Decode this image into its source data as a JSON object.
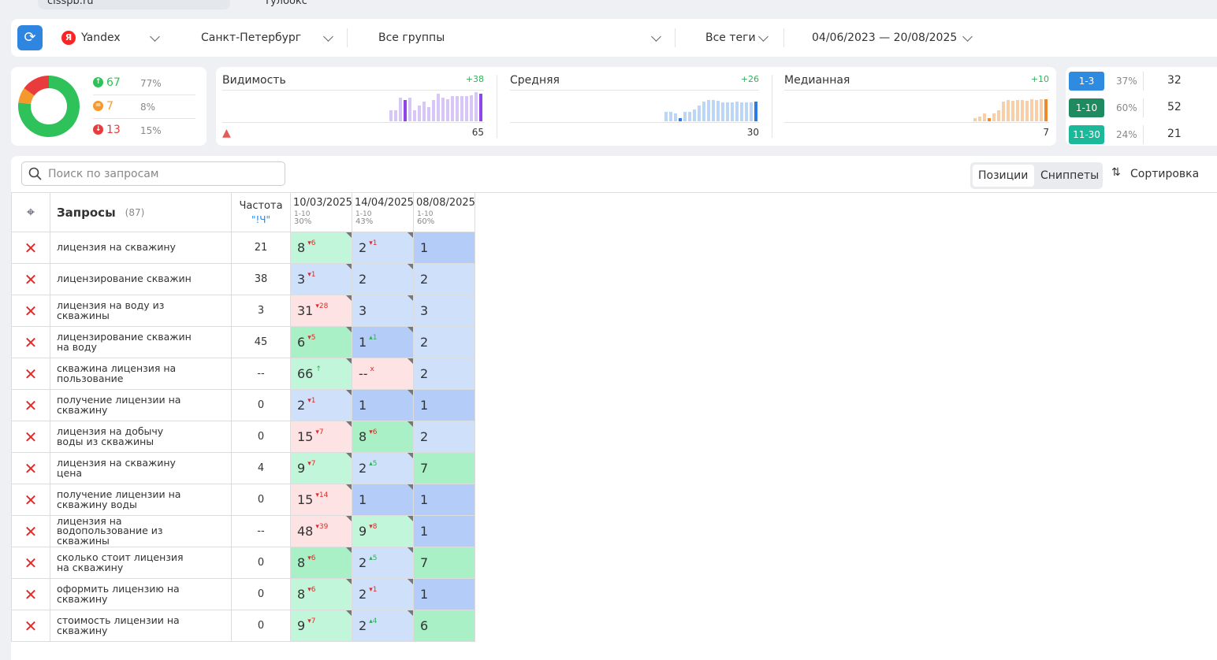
{
  "topbar": {
    "site": "cisspb.ru",
    "toolbox": "Тулбокс"
  },
  "filters": {
    "engine": "Yandex",
    "region": "Санкт-Петербург",
    "groups": "Все группы",
    "tags": "Все теги",
    "dates": "04/06/2023 — 20/08/2025"
  },
  "summary": {
    "type": "pie",
    "items": [
      {
        "count": 67,
        "share": "77%",
        "color": "#2fc15a"
      },
      {
        "count": 7,
        "share": "8%",
        "color": "#f49a2c"
      },
      {
        "count": 13,
        "share": "15%",
        "color": "#e93b3b"
      }
    ]
  },
  "cards": [
    {
      "title": "Видимость",
      "delta": "+38",
      "value": 65,
      "color": "#d8c6f7",
      "dark": "#8f45e8",
      "bars": [
        14,
        14,
        30,
        27,
        30,
        14,
        20,
        25,
        18,
        27,
        35,
        30,
        28,
        32,
        32,
        32,
        32,
        33,
        37,
        35
      ]
    },
    {
      "title": "Средняя",
      "delta": "+26",
      "value": 30,
      "color": "#bcd6f7",
      "dark": "#2a7be6",
      "bars": [
        12,
        12,
        10,
        4,
        12,
        12,
        15,
        20,
        25,
        27,
        27,
        26,
        24,
        24,
        24,
        25,
        24,
        24,
        24,
        25
      ]
    },
    {
      "title": "Медианная",
      "delta": "+10",
      "value": 7,
      "color": "#f8cfa8",
      "dark": "#ef8a2c",
      "bars": [
        4,
        6,
        10,
        4,
        10,
        14,
        25,
        27,
        26,
        27,
        27,
        26,
        28,
        27,
        28,
        28
      ]
    }
  ],
  "ranges": [
    {
      "label": "1-3",
      "share": "37%",
      "count": 32,
      "color": "#2f8be0"
    },
    {
      "label": "1-10",
      "share": "60%",
      "count": 52,
      "color": "#1e8a60"
    },
    {
      "label": "11-30",
      "share": "24%",
      "count": 21,
      "color": "#1cb89a"
    }
  ],
  "toolbar": {
    "search": "Поиск по запросам",
    "tab1": "Позиции",
    "tab2": "Сниппеты",
    "sort": "Сортировка"
  },
  "table": {
    "title": "Запросы",
    "count": "(87)",
    "freq": "Частота",
    "freq_sub": "\"!Ч\"",
    "dates": [
      {
        "date": "10/03/2025",
        "range": "1-10",
        "share": "30%"
      },
      {
        "date": "14/04/2025",
        "range": "1-10",
        "share": "43%"
      },
      {
        "date": "08/08/2025",
        "range": "1-10",
        "share": "60%"
      }
    ],
    "rows": [
      {
        "query": "лицензия на скважину",
        "freq": 21,
        "cells": [
          {
            "v": 8,
            "d": "▾6",
            "bg": "#c2f6da"
          },
          {
            "v": 2,
            "d": "▾1",
            "bg": "#cfe0fb"
          },
          {
            "v": 1,
            "bg": "#b4cdf8"
          }
        ]
      },
      {
        "query": "лицензирование скважин",
        "freq": 38,
        "cells": [
          {
            "v": 3,
            "d": "▾1",
            "bg": "#cfe0fb"
          },
          {
            "v": 2,
            "bg": "#cfe0fb"
          },
          {
            "v": 2,
            "bg": "#cfe0fb"
          }
        ]
      },
      {
        "query": "лицензия на воду из скважины",
        "freq": 3,
        "cells": [
          {
            "v": 31,
            "d": "▾28",
            "bg": "#fde3e3"
          },
          {
            "v": 3,
            "bg": "#cfe0fb"
          },
          {
            "v": 3,
            "bg": "#cfe0fb"
          }
        ]
      },
      {
        "query": "лицензирование скважин на воду",
        "freq": 45,
        "cells": [
          {
            "v": 6,
            "d": "▾5",
            "bg": "#a9f0c6"
          },
          {
            "v": 1,
            "d": "▴1",
            "bg": "#b4cdf8"
          },
          {
            "v": 2,
            "bg": "#cfe0fb"
          }
        ]
      },
      {
        "query": "скважина лицензия на пользование",
        "freq": "--",
        "cells": [
          {
            "v": 66,
            "d": "↑",
            "bg": "#c2f6da"
          },
          {
            "v": "--",
            "d": "x",
            "bg": "#fde3e3"
          },
          {
            "v": 2,
            "bg": "#cfe0fb"
          }
        ]
      },
      {
        "query": "получение лицензии на скважину",
        "freq": 0,
        "cells": [
          {
            "v": 2,
            "d": "▾1",
            "bg": "#cfe0fb"
          },
          {
            "v": 1,
            "bg": "#b4cdf8"
          },
          {
            "v": 1,
            "bg": "#b4cdf8"
          }
        ]
      },
      {
        "query": "лицензия на добычу воды из скважины",
        "freq": 0,
        "cells": [
          {
            "v": 15,
            "d": "▾7",
            "bg": "#fde3e3"
          },
          {
            "v": 8,
            "d": "▾6",
            "bg": "#a9f0c6"
          },
          {
            "v": 2,
            "bg": "#cfe0fb"
          }
        ]
      },
      {
        "query": "лицензия на скважину цена",
        "freq": 4,
        "cells": [
          {
            "v": 9,
            "d": "▾7",
            "bg": "#c2f6da"
          },
          {
            "v": 2,
            "d": "▴5",
            "bg": "#cfe0fb"
          },
          {
            "v": 7,
            "bg": "#a9f0c6"
          }
        ]
      },
      {
        "query": "получение лицензии на скважину воды",
        "freq": 0,
        "cells": [
          {
            "v": 15,
            "d": "▾14",
            "bg": "#fde3e3"
          },
          {
            "v": 1,
            "bg": "#b4cdf8"
          },
          {
            "v": 1,
            "bg": "#b4cdf8"
          }
        ]
      },
      {
        "query": "лицензия на водопользование из скважины",
        "freq": "--",
        "cells": [
          {
            "v": 48,
            "d": "▾39",
            "bg": "#fde3e3"
          },
          {
            "v": 9,
            "d": "▾8",
            "bg": "#c2f6da"
          },
          {
            "v": 1,
            "bg": "#b4cdf8"
          }
        ]
      },
      {
        "query": "сколько стоит лицензия на скважину",
        "freq": 0,
        "cells": [
          {
            "v": 8,
            "d": "▾6",
            "bg": "#a9f0c6"
          },
          {
            "v": 2,
            "d": "▴5",
            "bg": "#cfe0fb"
          },
          {
            "v": 7,
            "bg": "#a9f0c6"
          }
        ]
      },
      {
        "query": "оформить лицензию на скважину",
        "freq": 0,
        "cells": [
          {
            "v": 8,
            "d": "▾6",
            "bg": "#c2f6da"
          },
          {
            "v": 2,
            "d": "▾1",
            "bg": "#cfe0fb"
          },
          {
            "v": 1,
            "bg": "#b4cdf8"
          }
        ]
      },
      {
        "query": "стоимость лицензии на скважину",
        "freq": 0,
        "cells": [
          {
            "v": 9,
            "d": "▾7",
            "bg": "#c2f6da"
          },
          {
            "v": 2,
            "d": "▴4",
            "bg": "#cfe0fb"
          },
          {
            "v": 6,
            "bg": "#a9f0c6"
          }
        ]
      }
    ]
  }
}
